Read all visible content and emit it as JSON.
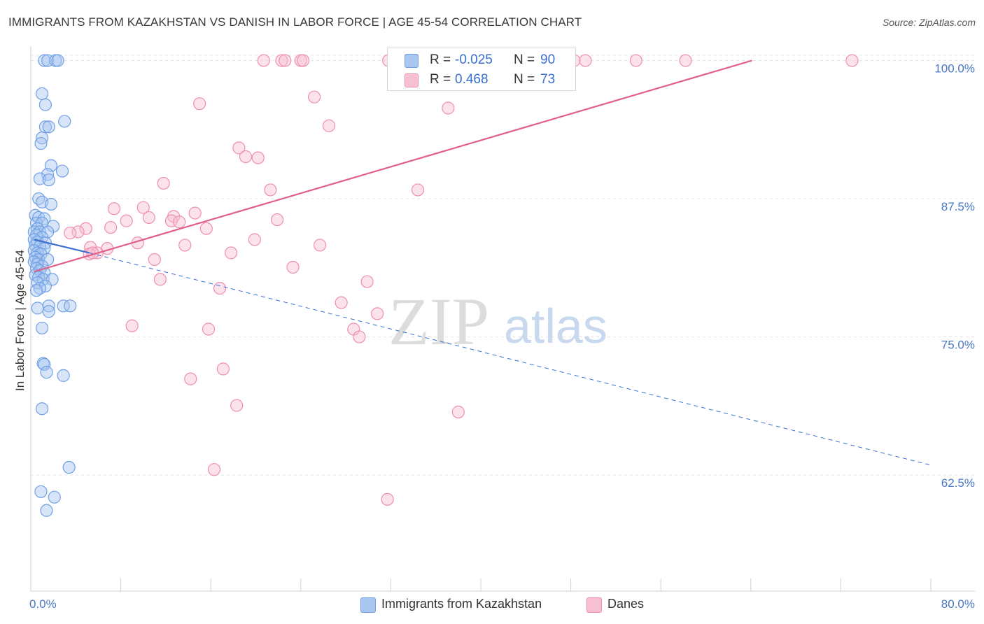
{
  "title": "IMMIGRANTS FROM KAZAKHSTAN VS DANISH IN LABOR FORCE | AGE 45-54 CORRELATION CHART",
  "source": "Source: ZipAtlas.com",
  "watermark": {
    "zip": "ZIP",
    "atlas": "atlas"
  },
  "colors": {
    "blue": "#6fa0e6",
    "blue_fill": "#a9c6f0",
    "pink": "#ef8fb0",
    "pink_fill": "#f6bfd2",
    "blue_line": "#3b6fd0",
    "pink_line": "#e0608a",
    "tick_text": "#4a78c8"
  },
  "legend": [
    {
      "r_label": "R =",
      "r_value": "-0.025",
      "n_label": "N =",
      "n_value": "90"
    },
    {
      "r_label": "R =",
      "r_value": "0.468",
      "n_label": "N =",
      "n_value": "73"
    }
  ],
  "bottom_legend": [
    "Immigrants from Kazakhstan",
    "Danes"
  ],
  "chart_data": {
    "type": "scatter",
    "title": "IMMIGRANTS FROM KAZAKHSTAN VS DANISH IN LABOR FORCE | AGE 45-54 CORRELATION CHART",
    "xlabel": "",
    "ylabel": "In Labor Force | Age 45-54",
    "xlim": [
      0,
      80
    ],
    "ylim": [
      52,
      101.3
    ],
    "x_tick_labels": [
      "0.0%",
      "80.0%"
    ],
    "y_ticks": [
      100,
      87.5,
      75,
      62.5
    ],
    "y_tick_labels": [
      "100.0%",
      "87.5%",
      "75.0%",
      "62.5%"
    ],
    "series": [
      {
        "name": "Immigrants from Kazakhstan",
        "points": [
          [
            1.2,
            100
          ],
          [
            1.5,
            100
          ],
          [
            2.2,
            100
          ],
          [
            2.4,
            100
          ],
          [
            1.0,
            97
          ],
          [
            1.3,
            96
          ],
          [
            3.0,
            94.5
          ],
          [
            1.3,
            94
          ],
          [
            1.6,
            94
          ],
          [
            1.0,
            93
          ],
          [
            0.9,
            92.5
          ],
          [
            1.8,
            90.5
          ],
          [
            2.8,
            90
          ],
          [
            1.5,
            89.7
          ],
          [
            0.8,
            89.3
          ],
          [
            1.6,
            89.2
          ],
          [
            0.7,
            87.5
          ],
          [
            1.0,
            87.2
          ],
          [
            1.8,
            87
          ],
          [
            0.4,
            86
          ],
          [
            0.7,
            85.8
          ],
          [
            1.2,
            85.7
          ],
          [
            0.5,
            85.3
          ],
          [
            1.0,
            85.3
          ],
          [
            2.0,
            85
          ],
          [
            0.6,
            84.8
          ],
          [
            0.3,
            84.5
          ],
          [
            0.8,
            84.5
          ],
          [
            1.5,
            84.5
          ],
          [
            0.5,
            84.2
          ],
          [
            1.0,
            84
          ],
          [
            0.3,
            83.8
          ],
          [
            0.6,
            83.6
          ],
          [
            1.3,
            83.5
          ],
          [
            0.4,
            83.3
          ],
          [
            0.8,
            83.2
          ],
          [
            1.2,
            83
          ],
          [
            0.3,
            82.8
          ],
          [
            0.6,
            82.6
          ],
          [
            0.9,
            82.5
          ],
          [
            0.4,
            82.2
          ],
          [
            0.7,
            82
          ],
          [
            1.5,
            82
          ],
          [
            0.3,
            81.8
          ],
          [
            0.6,
            81.6
          ],
          [
            1.0,
            81.4
          ],
          [
            0.5,
            81.2
          ],
          [
            0.8,
            81
          ],
          [
            1.2,
            80.8
          ],
          [
            0.4,
            80.6
          ],
          [
            0.7,
            80.4
          ],
          [
            1.1,
            80.2
          ],
          [
            1.9,
            80.2
          ],
          [
            0.6,
            79.9
          ],
          [
            1.3,
            79.6
          ],
          [
            0.8,
            79.4
          ],
          [
            0.5,
            79.2
          ],
          [
            1.6,
            77.8
          ],
          [
            2.9,
            77.8
          ],
          [
            3.5,
            77.8
          ],
          [
            0.6,
            77.6
          ],
          [
            1.6,
            77.3
          ],
          [
            1.0,
            75.8
          ],
          [
            1.1,
            72.6
          ],
          [
            1.2,
            72.5
          ],
          [
            1.4,
            71.8
          ],
          [
            2.9,
            71.5
          ],
          [
            1.0,
            68.5
          ],
          [
            3.4,
            63.2
          ],
          [
            0.9,
            61
          ],
          [
            2.1,
            60.5
          ],
          [
            1.4,
            59.3
          ]
        ]
      },
      {
        "name": "Danes",
        "points": [
          [
            20.7,
            100
          ],
          [
            22.3,
            100
          ],
          [
            22.6,
            100
          ],
          [
            24.0,
            100
          ],
          [
            24.2,
            100
          ],
          [
            31.8,
            100
          ],
          [
            32.5,
            100
          ],
          [
            34.5,
            100
          ],
          [
            40.0,
            100
          ],
          [
            42.4,
            100
          ],
          [
            48.3,
            100
          ],
          [
            49.3,
            100
          ],
          [
            53.8,
            100
          ],
          [
            58.2,
            100
          ],
          [
            73.0,
            100
          ],
          [
            25.2,
            96.7
          ],
          [
            15.0,
            96.1
          ],
          [
            37.1,
            95.7
          ],
          [
            26.5,
            94.1
          ],
          [
            18.5,
            92.1
          ],
          [
            19.1,
            91.3
          ],
          [
            20.2,
            91.2
          ],
          [
            11.8,
            88.9
          ],
          [
            34.4,
            88.3
          ],
          [
            21.3,
            88.3
          ],
          [
            7.4,
            86.6
          ],
          [
            10.0,
            86.7
          ],
          [
            14.6,
            86.2
          ],
          [
            10.5,
            85.8
          ],
          [
            8.5,
            85.5
          ],
          [
            12.7,
            85.9
          ],
          [
            12.5,
            85.5
          ],
          [
            21.9,
            85.6
          ],
          [
            13.2,
            85.4
          ],
          [
            4.9,
            84.8
          ],
          [
            7.1,
            84.9
          ],
          [
            15.6,
            84.8
          ],
          [
            4.2,
            84.5
          ],
          [
            3.5,
            84.4
          ],
          [
            19.9,
            83.8
          ],
          [
            9.5,
            83.5
          ],
          [
            13.7,
            83.3
          ],
          [
            25.7,
            83.3
          ],
          [
            5.3,
            83.1
          ],
          [
            6.8,
            83
          ],
          [
            5.9,
            82.6
          ],
          [
            5.2,
            82.5
          ],
          [
            5.5,
            82.6
          ],
          [
            17.8,
            82.6
          ],
          [
            11.0,
            82
          ],
          [
            23.3,
            81.3
          ],
          [
            11.5,
            80.2
          ],
          [
            29.9,
            80
          ],
          [
            16.8,
            79.4
          ],
          [
            27.6,
            78.1
          ],
          [
            30.8,
            77.1
          ],
          [
            9.0,
            76
          ],
          [
            15.8,
            75.7
          ],
          [
            28.7,
            75.7
          ],
          [
            29.2,
            75
          ],
          [
            17.1,
            72.1
          ],
          [
            14.2,
            71.2
          ],
          [
            18.3,
            68.8
          ],
          [
            38.0,
            68.2
          ],
          [
            16.3,
            63
          ],
          [
            31.7,
            60.3
          ]
        ]
      }
    ],
    "trend_lines": [
      {
        "series": "Immigrants from Kazakhstan",
        "style": "solid",
        "x": [
          0.3,
          5.2
        ],
        "y": [
          83.8,
          82.6
        ]
      },
      {
        "series": "Immigrants from Kazakhstan",
        "style": "dashed",
        "x": [
          5.2,
          80
        ],
        "y": [
          82.6,
          63.4
        ]
      },
      {
        "series": "Danes",
        "style": "solid",
        "x": [
          0.3,
          64.1
        ],
        "y": [
          80.9,
          100
        ]
      }
    ]
  }
}
